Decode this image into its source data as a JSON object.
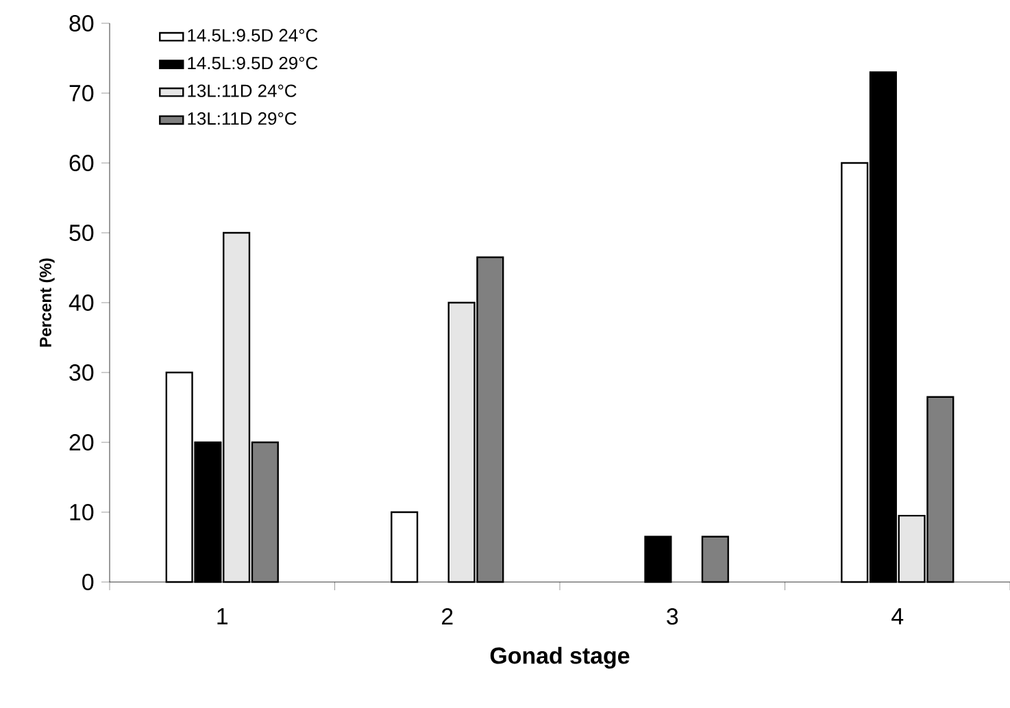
{
  "chart_data": {
    "type": "bar",
    "xlabel": "Gonad stage",
    "ylabel": "Percent (%)",
    "categories": [
      "1",
      "2",
      "3",
      "4"
    ],
    "series": [
      {
        "name": "14.5L:9.5D   24°C",
        "color": "#ffffff",
        "values": [
          30,
          10,
          null,
          60
        ]
      },
      {
        "name": "14.5L:9.5D   29°C",
        "color": "#000000",
        "values": [
          20,
          null,
          6.5,
          73
        ]
      },
      {
        "name": "13L:11D  24°C",
        "color": "#e6e6e6",
        "values": [
          50,
          40,
          null,
          9.5
        ]
      },
      {
        "name": "13L:11D  29°C",
        "color": "#808080",
        "values": [
          20,
          46.5,
          6.5,
          26.5
        ]
      }
    ],
    "ylim": [
      0,
      80
    ],
    "yticks": [
      0,
      10,
      20,
      30,
      40,
      50,
      60,
      70,
      80
    ],
    "grid": false,
    "legend": "top left"
  }
}
